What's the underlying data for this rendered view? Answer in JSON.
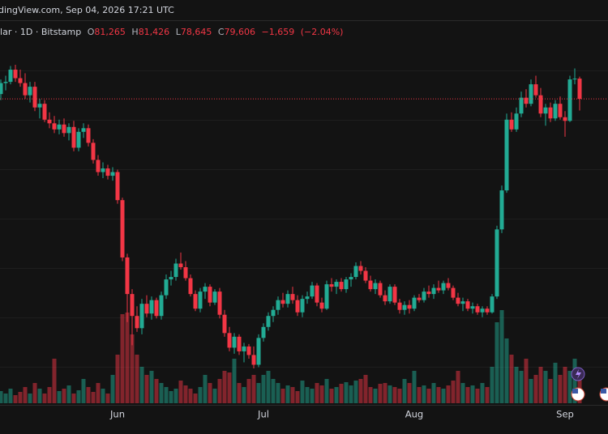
{
  "chart_data": {
    "type": "candlestick",
    "header": "dingView.com, Sep 04, 2026 17:21 UTC",
    "symbol": "llar · 1D · Bitstamp",
    "ohlc_header": [
      {
        "key": "O",
        "value": 81265,
        "label": "81,265"
      },
      {
        "key": "H",
        "value": 81426,
        "label": "81,426"
      },
      {
        "key": "L",
        "value": 78645,
        "label": "78,645"
      },
      {
        "key": "C",
        "value": 79606,
        "label": "79,606"
      }
    ],
    "change": {
      "value": -1659,
      "label": "−1,659"
    },
    "change_pct": {
      "value": -2.04,
      "label": "(−2.04%)"
    },
    "up_color": "#22ab94",
    "down_color": "#f23645",
    "ylim": [
      57500,
      82400
    ],
    "vlim": [
      0,
      120
    ],
    "categories": [
      null,
      null,
      null,
      null,
      null,
      null,
      null,
      null,
      null,
      null,
      null,
      null,
      null,
      null,
      null,
      null,
      null,
      null,
      null,
      null,
      null,
      null,
      null,
      null,
      "Jun",
      null,
      null,
      null,
      null,
      null,
      null,
      null,
      null,
      null,
      null,
      null,
      null,
      null,
      null,
      null,
      null,
      null,
      null,
      null,
      null,
      null,
      null,
      null,
      null,
      null,
      null,
      null,
      null,
      null,
      "Jul",
      null,
      null,
      null,
      null,
      null,
      null,
      null,
      null,
      null,
      null,
      null,
      null,
      null,
      null,
      null,
      null,
      null,
      null,
      null,
      null,
      null,
      null,
      null,
      null,
      null,
      null,
      null,
      null,
      null,
      null,
      "Aug",
      null,
      null,
      null,
      null,
      null,
      null,
      null,
      null,
      null,
      null,
      null,
      null,
      null,
      null,
      null,
      null,
      null,
      null,
      null,
      null,
      null,
      null,
      null,
      null,
      null,
      null,
      null,
      null,
      null,
      null,
      "Sep",
      null,
      null,
      null
    ],
    "ohlc": [
      [
        80000,
        81200,
        79500,
        80900
      ],
      [
        80900,
        81500,
        80300,
        81000
      ],
      [
        81000,
        82300,
        80800,
        82000
      ],
      [
        82000,
        82400,
        81000,
        81300
      ],
      [
        81300,
        82000,
        80600,
        80900
      ],
      [
        80900,
        81700,
        79600,
        79900
      ],
      [
        79900,
        81000,
        79300,
        80600
      ],
      [
        80600,
        81000,
        78600,
        78900
      ],
      [
        78900,
        79600,
        78000,
        79200
      ],
      [
        79200,
        79500,
        77700,
        77900
      ],
      [
        77900,
        78500,
        77200,
        77600
      ],
      [
        77600,
        78200,
        76800,
        77100
      ],
      [
        77100,
        77900,
        76700,
        77500
      ],
      [
        77500,
        78000,
        76500,
        76800
      ],
      [
        76800,
        77600,
        76200,
        77300
      ],
      [
        77300,
        77800,
        75300,
        75600
      ],
      [
        75600,
        77200,
        75300,
        76900
      ],
      [
        76900,
        77600,
        76400,
        77200
      ],
      [
        77200,
        77500,
        75700,
        76000
      ],
      [
        76000,
        76300,
        74300,
        74600
      ],
      [
        74600,
        75000,
        73300,
        73600
      ],
      [
        73600,
        74400,
        73100,
        73900
      ],
      [
        73900,
        74200,
        73000,
        73300
      ],
      [
        73300,
        74000,
        72900,
        73600
      ],
      [
        73600,
        73800,
        71000,
        71300
      ],
      [
        71300,
        71500,
        66300,
        66600
      ],
      [
        66600,
        66900,
        61300,
        63600
      ],
      [
        63600,
        64000,
        59400,
        61800
      ],
      [
        61800,
        62600,
        60500,
        60800
      ],
      [
        60800,
        63200,
        60300,
        62800
      ],
      [
        62800,
        63500,
        61700,
        62000
      ],
      [
        62000,
        63400,
        61500,
        63100
      ],
      [
        63100,
        63300,
        61600,
        61800
      ],
      [
        61800,
        63800,
        61500,
        63500
      ],
      [
        63500,
        65200,
        63200,
        64800
      ],
      [
        64800,
        65500,
        64300,
        65000
      ],
      [
        65000,
        66500,
        64700,
        66100
      ],
      [
        66100,
        67000,
        65600,
        65800
      ],
      [
        65800,
        66300,
        64700,
        64900
      ],
      [
        64900,
        65200,
        63400,
        63600
      ],
      [
        63600,
        63900,
        62200,
        62400
      ],
      [
        62400,
        64100,
        62100,
        63800
      ],
      [
        63800,
        64500,
        63200,
        64200
      ],
      [
        64200,
        64400,
        62600,
        62900
      ],
      [
        62900,
        64000,
        62700,
        63800
      ],
      [
        63800,
        64100,
        61600,
        61900
      ],
      [
        61900,
        62300,
        60100,
        60400
      ],
      [
        60400,
        60900,
        58900,
        59200
      ],
      [
        59200,
        60400,
        58700,
        60100
      ],
      [
        60100,
        60300,
        58600,
        58900
      ],
      [
        58900,
        59600,
        58000,
        59300
      ],
      [
        59300,
        59500,
        58300,
        58600
      ],
      [
        58600,
        59300,
        57500,
        57800
      ],
      [
        57800,
        60300,
        57600,
        60000
      ],
      [
        60000,
        61200,
        59700,
        60900
      ],
      [
        60900,
        62100,
        60600,
        61800
      ],
      [
        61800,
        62600,
        61300,
        62300
      ],
      [
        62300,
        63400,
        61900,
        63100
      ],
      [
        63100,
        63700,
        62500,
        62800
      ],
      [
        62800,
        63900,
        62500,
        63600
      ],
      [
        63600,
        64200,
        62800,
        63100
      ],
      [
        63100,
        63500,
        61800,
        62100
      ],
      [
        62100,
        63500,
        61700,
        63200
      ],
      [
        63200,
        63800,
        62800,
        63400
      ],
      [
        63400,
        64600,
        63200,
        64300
      ],
      [
        64300,
        64500,
        62600,
        62900
      ],
      [
        62900,
        63300,
        62100,
        62400
      ],
      [
        62400,
        64700,
        62300,
        64400
      ],
      [
        64400,
        64900,
        63800,
        64200
      ],
      [
        64200,
        64800,
        63600,
        64600
      ],
      [
        64600,
        64900,
        63800,
        64000
      ],
      [
        64000,
        65000,
        63700,
        64800
      ],
      [
        64800,
        65300,
        64200,
        65000
      ],
      [
        65000,
        66200,
        64800,
        65900
      ],
      [
        65900,
        66300,
        65200,
        65500
      ],
      [
        65500,
        65800,
        64500,
        64700
      ],
      [
        64700,
        65100,
        63800,
        64000
      ],
      [
        64000,
        64800,
        63600,
        64500
      ],
      [
        64500,
        64700,
        63300,
        63500
      ],
      [
        63500,
        63900,
        62700,
        63000
      ],
      [
        63000,
        64400,
        62800,
        64200
      ],
      [
        64200,
        64400,
        62700,
        62900
      ],
      [
        62900,
        63200,
        62000,
        62300
      ],
      [
        62300,
        63000,
        61900,
        62700
      ],
      [
        62700,
        63100,
        62000,
        62400
      ],
      [
        62400,
        63500,
        62200,
        63300
      ],
      [
        63300,
        63600,
        62900,
        63100
      ],
      [
        63100,
        64100,
        62900,
        63800
      ],
      [
        63800,
        64300,
        63300,
        63600
      ],
      [
        63600,
        64400,
        63200,
        64100
      ],
      [
        64100,
        64700,
        63700,
        63900
      ],
      [
        63900,
        64700,
        63600,
        64500
      ],
      [
        64500,
        64900,
        63900,
        64100
      ],
      [
        64100,
        64300,
        63100,
        63300
      ],
      [
        63300,
        63700,
        62600,
        62800
      ],
      [
        62800,
        63300,
        62200,
        63000
      ],
      [
        63000,
        63200,
        62200,
        62400
      ],
      [
        62400,
        62900,
        62000,
        62600
      ],
      [
        62600,
        62800,
        61900,
        62100
      ],
      [
        62100,
        62600,
        61700,
        62400
      ],
      [
        62400,
        62600,
        61900,
        62100
      ],
      [
        62100,
        63600,
        62000,
        63400
      ],
      [
        63400,
        69200,
        63200,
        68900
      ],
      [
        68900,
        72500,
        68600,
        72100
      ],
      [
        72100,
        78400,
        71900,
        77900
      ],
      [
        77900,
        78500,
        76900,
        77100
      ],
      [
        77100,
        78900,
        76900,
        78400
      ],
      [
        78400,
        80200,
        78100,
        79700
      ],
      [
        79700,
        80400,
        78900,
        79200
      ],
      [
        79200,
        81200,
        79000,
        80800
      ],
      [
        80800,
        81500,
        79700,
        79900
      ],
      [
        79900,
        80500,
        78100,
        78400
      ],
      [
        78400,
        79200,
        77400,
        78900
      ],
      [
        78900,
        79300,
        77700,
        78000
      ],
      [
        78000,
        79500,
        77800,
        79200
      ],
      [
        79200,
        79800,
        77900,
        78100
      ],
      [
        78100,
        78600,
        76500,
        77800
      ],
      [
        77800,
        81500,
        77700,
        81200
      ],
      [
        81200,
        82100,
        80800,
        81265
      ],
      [
        81265,
        81426,
        78645,
        79606
      ]
    ],
    "volume": [
      15,
      12,
      18,
      10,
      14,
      20,
      12,
      25,
      18,
      12,
      20,
      55,
      15,
      18,
      22,
      12,
      16,
      30,
      20,
      14,
      25,
      18,
      12,
      35,
      60,
      110,
      112,
      85,
      60,
      45,
      35,
      40,
      30,
      25,
      20,
      15,
      18,
      28,
      22,
      18,
      12,
      20,
      35,
      25,
      18,
      30,
      40,
      38,
      55,
      25,
      20,
      30,
      35,
      25,
      35,
      40,
      30,
      25,
      18,
      22,
      20,
      15,
      28,
      20,
      18,
      25,
      22,
      30,
      18,
      20,
      24,
      26,
      22,
      28,
      30,
      35,
      20,
      18,
      24,
      25,
      22,
      20,
      18,
      30,
      25,
      40,
      20,
      22,
      18,
      25,
      20,
      18,
      22,
      28,
      40,
      25,
      20,
      22,
      18,
      25,
      20,
      45,
      100,
      115,
      80,
      60,
      45,
      40,
      55,
      30,
      35,
      45,
      40,
      30,
      50,
      35,
      45,
      40,
      55,
      30
    ]
  }
}
